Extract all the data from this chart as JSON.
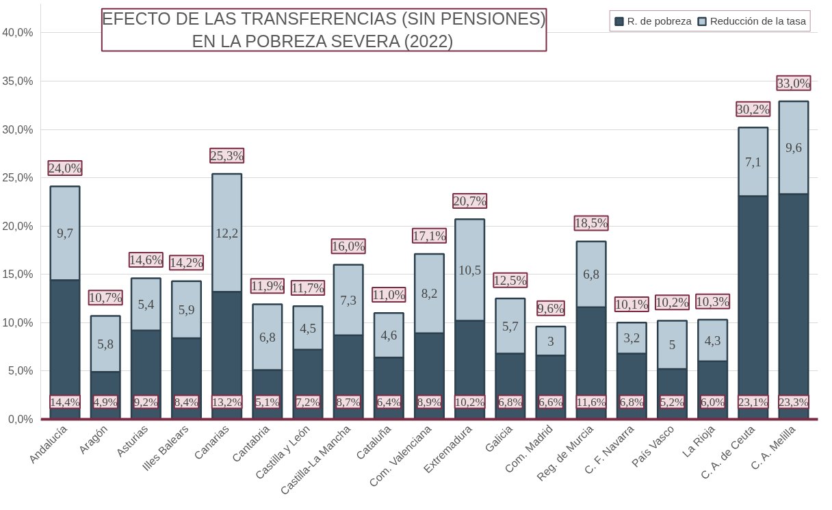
{
  "chart_data": {
    "type": "bar",
    "stacked": true,
    "title": "EFECTO DE LAS TRANSFERENCIAS (SIN PENSIONES)\nEN LA POBREZA SEVERA (2022)",
    "categories": [
      "Andalucía",
      "Aragón",
      "Asturias",
      "Illes Balears",
      "Canarias",
      "Cantabria",
      "Castilla y León",
      "Castilla-La Mancha",
      "Cataluña",
      "Com. Valenciana",
      "Extremadura",
      "Galicia",
      "Com. Madrid",
      "Reg. de Murcia",
      "C. F. Navarra",
      "País Vasco",
      "La Rioja",
      "C. A. de Ceuta",
      "C. A. Melilla"
    ],
    "series": [
      {
        "name": "R. de pobreza",
        "color": "#3b5566",
        "values": [
          14.4,
          4.9,
          9.2,
          8.4,
          13.2,
          5.1,
          7.2,
          8.7,
          6.4,
          8.9,
          10.2,
          6.8,
          6.6,
          11.6,
          6.8,
          5.2,
          6.0,
          23.1,
          23.3
        ],
        "value_labels": [
          "14,4%",
          "4,9%",
          "9,2%",
          "8,4%",
          "13,2%",
          "5,1%",
          "7,2%",
          "8,7%",
          "6,4%",
          "8,9%",
          "10,2%",
          "6,8%",
          "6,6%",
          "11,6%",
          "6,8%",
          "5,2%",
          "6,0%",
          "23,1%",
          "23,3%"
        ]
      },
      {
        "name": "Reducción de la tasa",
        "color": "#b8cbd6",
        "values": [
          9.7,
          5.8,
          5.4,
          5.9,
          12.2,
          6.8,
          4.5,
          7.3,
          4.6,
          8.2,
          10.5,
          5.7,
          3,
          6.8,
          3.2,
          5,
          4.3,
          7.1,
          9.6
        ],
        "value_labels": [
          "9,7",
          "5,8",
          "5,4",
          "5,9",
          "12,2",
          "6,8",
          "4,5",
          "7,3",
          "4,6",
          "8,2",
          "10,5",
          "5,7",
          "3",
          "6,8",
          "3,2",
          "5",
          "4,3",
          "7,1",
          "9,6"
        ]
      }
    ],
    "totals": [
      "24,0%",
      "10,7%",
      "14,6%",
      "14,2%",
      "25,3%",
      "11,9%",
      "11,7%",
      "16,0%",
      "11,0%",
      "17,1%",
      "20,7%",
      "12,5%",
      "9,6%",
      "18,5%",
      "10,1%",
      "10,2%",
      "10,3%",
      "30,2%",
      "33,0%"
    ],
    "ylim": [
      0,
      43
    ],
    "yticks": [
      {
        "value": 0,
        "label": "0,0%"
      },
      {
        "value": 5,
        "label": "5,0%"
      },
      {
        "value": 10,
        "label": "10,0%"
      },
      {
        "value": 15,
        "label": "15,0%"
      },
      {
        "value": 20,
        "label": "20,0%"
      },
      {
        "value": 25,
        "label": "25,0%"
      },
      {
        "value": 30,
        "label": "30,0%"
      },
      {
        "value": 35,
        "label": "35,0%"
      },
      {
        "value": 40,
        "label": "40,0%"
      }
    ],
    "grid": "y",
    "legend": "top right"
  }
}
